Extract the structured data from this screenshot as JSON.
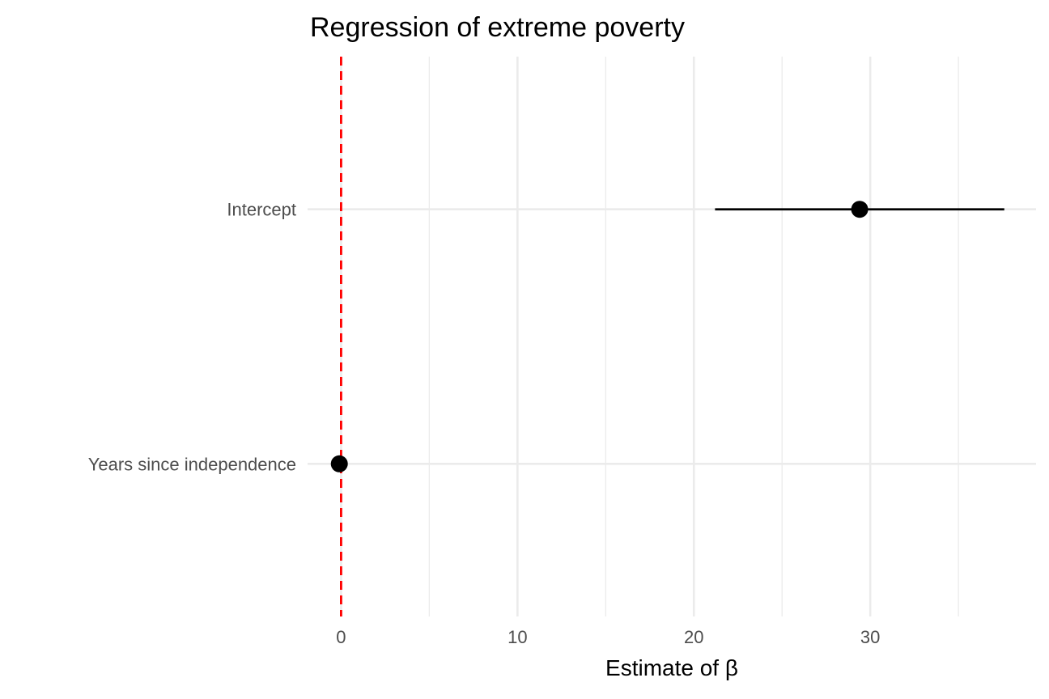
{
  "chart_data": {
    "type": "forest",
    "title": "Regression of extreme poverty",
    "xlabel": "Estimate of β",
    "ylabel": "",
    "xlim": [
      -1.9,
      39.4
    ],
    "x_ticks": [
      0,
      10,
      20,
      30
    ],
    "x_minor_ticks": [
      5,
      15,
      25,
      35
    ],
    "grid": true,
    "categories": [
      "Intercept",
      "Years since independence"
    ],
    "estimates": [
      29.4,
      -0.1
    ],
    "ci_low": [
      21.2,
      -0.1
    ],
    "ci_high": [
      37.6,
      -0.1
    ],
    "reference_line": {
      "x": 0,
      "style": "dashed",
      "color": "#ff0000"
    },
    "colors": {
      "points": "#000000",
      "grid": "#ebebeb",
      "reference": "#ff0000"
    }
  }
}
